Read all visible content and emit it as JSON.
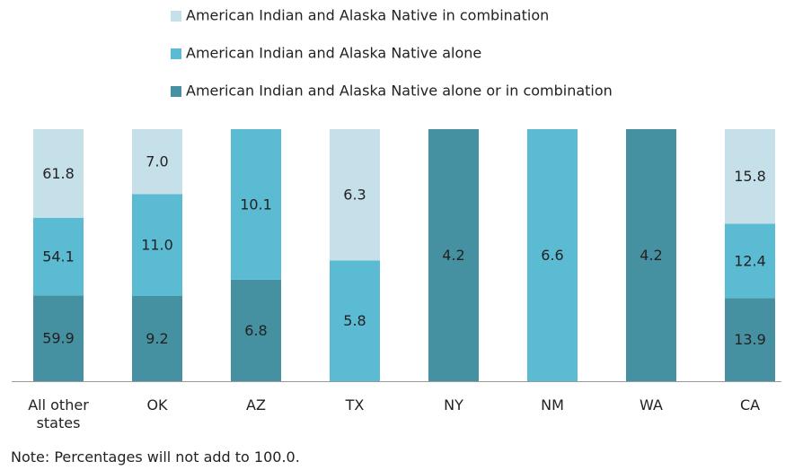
{
  "chart_data": {
    "type": "bar",
    "stacked": true,
    "normalized": true,
    "categories": [
      "All other states",
      "OK",
      "AZ",
      "TX",
      "NY",
      "NM",
      "WA",
      "CA"
    ],
    "series": [
      {
        "name": "American Indian and Alaska Native in combination",
        "color": "#c6e0ea",
        "values": [
          61.8,
          7.0,
          null,
          6.3,
          null,
          null,
          null,
          15.8
        ],
        "value_labels": [
          "61.8",
          "7.0",
          null,
          "6.3",
          null,
          null,
          null,
          "15.8"
        ]
      },
      {
        "name": "American Indian and Alaska Native alone",
        "color": "#5abbd2",
        "values": [
          54.1,
          11.0,
          10.1,
          5.8,
          null,
          6.6,
          null,
          12.4
        ],
        "value_labels": [
          "54.1",
          "11.0",
          "10.1",
          "5.8",
          null,
          "6.6",
          null,
          "12.4"
        ]
      },
      {
        "name": "American Indian and Alaska Native alone or in combination",
        "color": "#4591a2",
        "values": [
          59.9,
          9.2,
          6.8,
          null,
          4.2,
          null,
          4.2,
          13.9
        ],
        "value_labels": [
          "59.9",
          "9.2",
          "6.8",
          null,
          "4.2",
          null,
          "4.2",
          "13.9"
        ]
      }
    ],
    "note": "Note: Percentages will not add to 100.0."
  }
}
